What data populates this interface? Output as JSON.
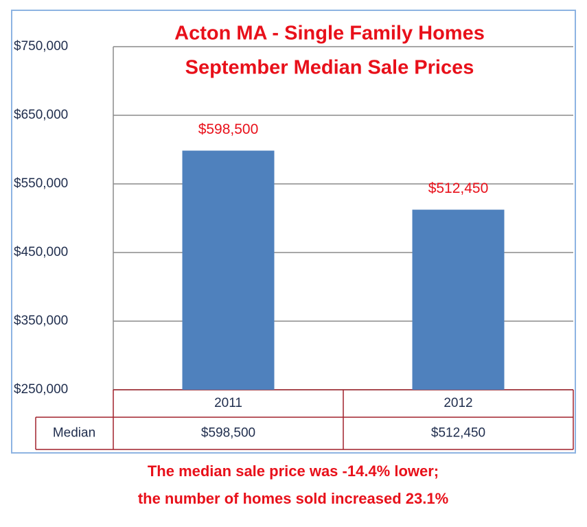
{
  "chart_data": {
    "type": "bar",
    "title": "Acton MA - Single Family Homes",
    "subtitle": "September Median Sale Prices",
    "categories": [
      "2011",
      "2012"
    ],
    "values": [
      598500,
      512450
    ],
    "value_labels": [
      "$598,500",
      "$512,450"
    ],
    "color": "#4f81bd",
    "table_row_label": "Median",
    "ylim": [
      250000,
      750000
    ],
    "yticks": [
      {
        "value": 250000,
        "label": "$250,000"
      },
      {
        "value": 350000,
        "label": "$350,000"
      },
      {
        "value": 450000,
        "label": "$450,000"
      },
      {
        "value": 550000,
        "label": "$550,000"
      },
      {
        "value": 650000,
        "label": "$650,000"
      },
      {
        "value": 750000,
        "label": "$750,000"
      }
    ],
    "grid": true,
    "notes": [
      "The median sale price was -14.4% lower;",
      "the number of homes sold increased 23.1%"
    ]
  }
}
